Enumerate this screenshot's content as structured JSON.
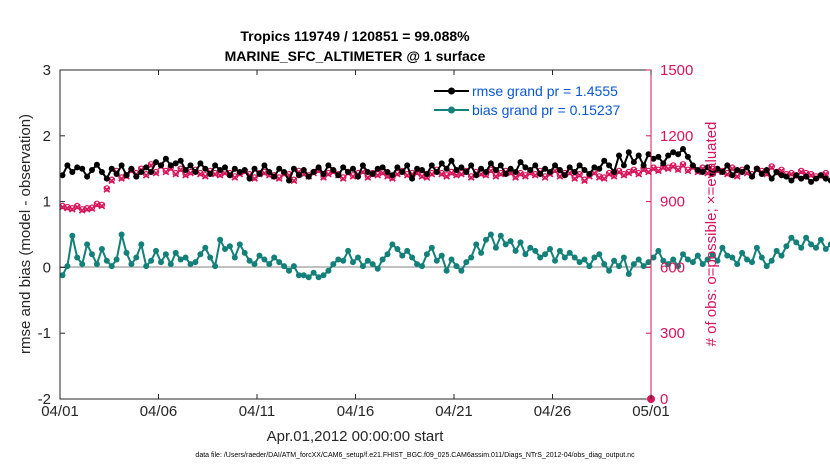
{
  "chart_data": {
    "type": "line",
    "title": "Tropics 119749 / 120851 = 99.088%",
    "subtitle": "MARINE_SFC_ALTIMETER @ 1 surface",
    "xlabel": "Apr.01,2012 00:00:00 start",
    "ylabel": "rmse and bias (model - observation)",
    "ylabel_right": "# of obs: o=possible; ×=evaluated",
    "footnote": "data file: /Users/raeder/DAI/ATM_forcXX/CAM6_setup/f.e21.FHIST_BGC.f09_025.CAM6assim.011/Diags_NTrS_2012-04/obs_diag_output.nc",
    "x_range": [
      "04/01",
      "05/01"
    ],
    "x_ticks": [
      "04/01",
      "04/06",
      "04/11",
      "04/16",
      "04/21",
      "04/26",
      "05/01"
    ],
    "ylim": [
      -2,
      3
    ],
    "y_ticks": [
      "-2",
      "-1",
      "0",
      "1",
      "2",
      "3"
    ],
    "ylim_right": [
      0,
      1500
    ],
    "y_ticks_right": [
      "0",
      "300",
      "600",
      "900",
      "1200",
      "1500"
    ],
    "grid": false,
    "legend_position": "top-right",
    "colors": {
      "rmse": "#000000",
      "bias": "#138079",
      "obs": "#d6155a",
      "zero_line": "#c0c0c0",
      "legend_text": "#0a57d6"
    },
    "legend": [
      {
        "label": "rmse grand pr = 1.4555",
        "series": "rmse"
      },
      {
        "label": "bias grand pr = 0.15237",
        "series": "bias"
      }
    ],
    "series": [
      {
        "name": "rmse",
        "axis": "left",
        "marker": "filled-circle",
        "line": true,
        "x_start_day": 1.125,
        "x_step_days": 0.25,
        "values": [
          1.4,
          1.55,
          1.45,
          1.52,
          1.5,
          1.38,
          1.48,
          1.56,
          1.45,
          1.35,
          1.5,
          1.42,
          1.55,
          1.4,
          1.5,
          1.38,
          1.45,
          1.52,
          1.45,
          1.6,
          1.55,
          1.65,
          1.55,
          1.58,
          1.62,
          1.48,
          1.55,
          1.45,
          1.58,
          1.5,
          1.42,
          1.55,
          1.48,
          1.52,
          1.4,
          1.5,
          1.45,
          1.48,
          1.35,
          1.5,
          1.42,
          1.55,
          1.45,
          1.38,
          1.5,
          1.45,
          1.32,
          1.5,
          1.4,
          1.48,
          1.38,
          1.45,
          1.52,
          1.42,
          1.55,
          1.48,
          1.4,
          1.52,
          1.45,
          1.5,
          1.38,
          1.55,
          1.45,
          1.42,
          1.5,
          1.52,
          1.45,
          1.4,
          1.52,
          1.45,
          1.55,
          1.35,
          1.5,
          1.48,
          1.42,
          1.55,
          1.45,
          1.58,
          1.5,
          1.62,
          1.48,
          1.52,
          1.45,
          1.55,
          1.4,
          1.5,
          1.45,
          1.58,
          1.48,
          1.55,
          1.42,
          1.5,
          1.45,
          1.6,
          1.52,
          1.48,
          1.55,
          1.42,
          1.5,
          1.45,
          1.55,
          1.48,
          1.4,
          1.52,
          1.45,
          1.55,
          1.48,
          1.42,
          1.52,
          1.5,
          1.62,
          1.55,
          1.45,
          1.7,
          1.55,
          1.75,
          1.6,
          1.7,
          1.55,
          1.72,
          1.65,
          1.68,
          1.58,
          1.7,
          1.75,
          1.72,
          1.8,
          1.68,
          1.55,
          1.48,
          1.45,
          1.52,
          1.42,
          1.5,
          1.45,
          1.55,
          1.4,
          1.48,
          1.45,
          1.52,
          1.38,
          1.5,
          1.42,
          1.48,
          1.35,
          1.45,
          1.4,
          1.38,
          1.32,
          1.4,
          1.35,
          1.38,
          1.3,
          1.35,
          1.4,
          1.35,
          1.32,
          1.38
        ]
      },
      {
        "name": "bias",
        "axis": "left",
        "marker": "filled-circle",
        "line": true,
        "x_start_day": 1.125,
        "x_step_days": 0.25,
        "values": [
          -0.12,
          0.02,
          0.48,
          0.15,
          0.05,
          0.35,
          0.2,
          0.05,
          0.28,
          0.1,
          0.02,
          0.12,
          0.5,
          0.22,
          0.05,
          0.15,
          0.35,
          0.02,
          0.1,
          0.25,
          0.08,
          0.2,
          0.05,
          0.22,
          0.12,
          0.15,
          0.05,
          0.08,
          0.2,
          0.3,
          0.15,
          0.02,
          0.42,
          0.28,
          0.32,
          0.15,
          0.35,
          0.22,
          0.1,
          0.05,
          0.18,
          0.12,
          0.05,
          0.15,
          0.08,
          0.02,
          -0.05,
          0.02,
          -0.12,
          -0.12,
          -0.15,
          -0.08,
          -0.15,
          -0.12,
          -0.05,
          0.05,
          0.12,
          0.1,
          0.25,
          0.08,
          0.15,
          0.02,
          0.1,
          0.05,
          -0.02,
          0.12,
          0.2,
          0.35,
          0.28,
          0.18,
          0.25,
          0.15,
          0.05,
          0.02,
          0.2,
          0.3,
          0.1,
          0.18,
          -0.05,
          0.12,
          0.02,
          -0.05,
          0.08,
          0.15,
          0.35,
          0.22,
          0.42,
          0.5,
          0.3,
          0.48,
          0.35,
          0.4,
          0.25,
          0.38,
          0.2,
          0.3,
          0.25,
          0.15,
          0.2,
          0.28,
          0.1,
          0.25,
          0.15,
          0.22,
          0.15,
          0.08,
          0.12,
          0.02,
          0.15,
          0.2,
          0.05,
          -0.05,
          0.1,
          0.02,
          0.15,
          -0.1,
          0.05,
          0.12,
          0.02,
          0.08,
          0.15,
          0.25,
          0.1,
          0.05,
          0.12,
          0.02,
          0.2,
          0.12,
          0.08,
          0.18,
          0.05,
          0.12,
          0.2,
          0.1,
          0.3,
          0.18,
          0.15,
          0.05,
          0.22,
          0.12,
          0.08,
          0.3,
          0.15,
          0.02,
          0.1,
          0.25,
          0.18,
          0.32,
          0.45,
          0.38,
          0.3,
          0.45,
          0.35,
          0.3,
          0.42,
          0.28,
          0.35,
          0.25,
          0.3,
          0.15,
          0.2,
          0.12
        ]
      },
      {
        "name": "possible obs",
        "axis": "right",
        "marker": "open-circle",
        "line": false,
        "x_start_day": 1.125,
        "x_step_days": 0.25,
        "values": [
          880,
          875,
          870,
          880,
          865,
          870,
          872,
          890,
          885,
          960,
          1000,
          1040,
          1010,
          1020,
          1045,
          1030,
          1050,
          1025,
          1070,
          1035,
          1065,
          1040,
          1055,
          1030,
          1050,
          1025,
          1035,
          1045,
          1030,
          1020,
          1040,
          1030,
          1025,
          1035,
          1030,
          1015,
          1030,
          1040,
          1025,
          1010,
          1030,
          1035,
          1025,
          1020,
          1010,
          1030,
          1025,
          1000,
          1040,
          1030,
          1020,
          1035,
          1045,
          1015,
          1030,
          1040,
          1025,
          1010,
          1035,
          1020,
          1030,
          1040,
          1015,
          1030,
          1025,
          1035,
          1020,
          1010,
          1030,
          1040,
          1025,
          1030,
          1035,
          1020,
          1015,
          1030,
          1045,
          1030,
          1020,
          1035,
          1025,
          1030,
          1040,
          1015,
          1035,
          1030,
          1025,
          1045,
          1020,
          1030,
          1040,
          1035,
          1015,
          1030,
          1020,
          1035,
          1025,
          1040,
          1015,
          1030,
          1045,
          1020,
          1030,
          1035,
          1010,
          1025,
          1000,
          1020,
          1035,
          1015,
          1010,
          1030,
          1020,
          1040,
          1025,
          1035,
          1045,
          1030,
          1050,
          1040,
          1055,
          1045,
          1060,
          1055,
          1065,
          1050,
          1070,
          1045,
          1060,
          1040,
          1055,
          1035,
          1050,
          1045,
          1040,
          1030,
          1055,
          1020,
          1045,
          1035,
          1025,
          1050,
          1040,
          1030,
          1060,
          1035,
          1045,
          1025,
          1030,
          1020,
          1040,
          1030,
          1025,
          1015,
          1020,
          1030
        ]
      },
      {
        "name": "evaluated obs",
        "axis": "right",
        "marker": "x",
        "line": false,
        "x_start_day": 1.125,
        "x_step_days": 0.25,
        "values": [
          875,
          870,
          865,
          875,
          860,
          865,
          868,
          885,
          880,
          955,
          995,
          1035,
          1005,
          1015,
          1040,
          1025,
          1045,
          1020,
          1065,
          1030,
          1060,
          1035,
          1050,
          1025,
          1045,
          1020,
          1030,
          1040,
          1025,
          1015,
          1035,
          1025,
          1020,
          1030,
          1025,
          1010,
          1025,
          1035,
          1020,
          1005,
          1025,
          1030,
          1020,
          1015,
          1005,
          1025,
          1020,
          995,
          1035,
          1025,
          1015,
          1030,
          1040,
          1010,
          1025,
          1035,
          1020,
          1005,
          1030,
          1015,
          1025,
          1035,
          1010,
          1025,
          1020,
          1030,
          1015,
          1005,
          1025,
          1035,
          1020,
          1025,
          1030,
          1015,
          1010,
          1025,
          1040,
          1025,
          1015,
          1030,
          1020,
          1025,
          1035,
          1010,
          1030,
          1025,
          1020,
          1040,
          1015,
          1025,
          1035,
          1030,
          1010,
          1025,
          1015,
          1030,
          1020,
          1035,
          1010,
          1025,
          1040,
          1015,
          1025,
          1030,
          1005,
          1020,
          995,
          1015,
          1030,
          1010,
          1005,
          1025,
          1015,
          1035,
          1020,
          1030,
          1040,
          1025,
          1045,
          1035,
          1050,
          1040,
          1055,
          1050,
          1060,
          1045,
          1065,
          1040,
          1055,
          1035,
          1050,
          1030,
          1045,
          1040,
          1035,
          1025,
          1050,
          1015,
          1040,
          1030,
          1020,
          1045,
          1035,
          1025,
          1055,
          1030,
          1040,
          1020,
          1025,
          1015,
          1035,
          1025,
          1020,
          1010,
          1015,
          1025
        ]
      }
    ]
  }
}
